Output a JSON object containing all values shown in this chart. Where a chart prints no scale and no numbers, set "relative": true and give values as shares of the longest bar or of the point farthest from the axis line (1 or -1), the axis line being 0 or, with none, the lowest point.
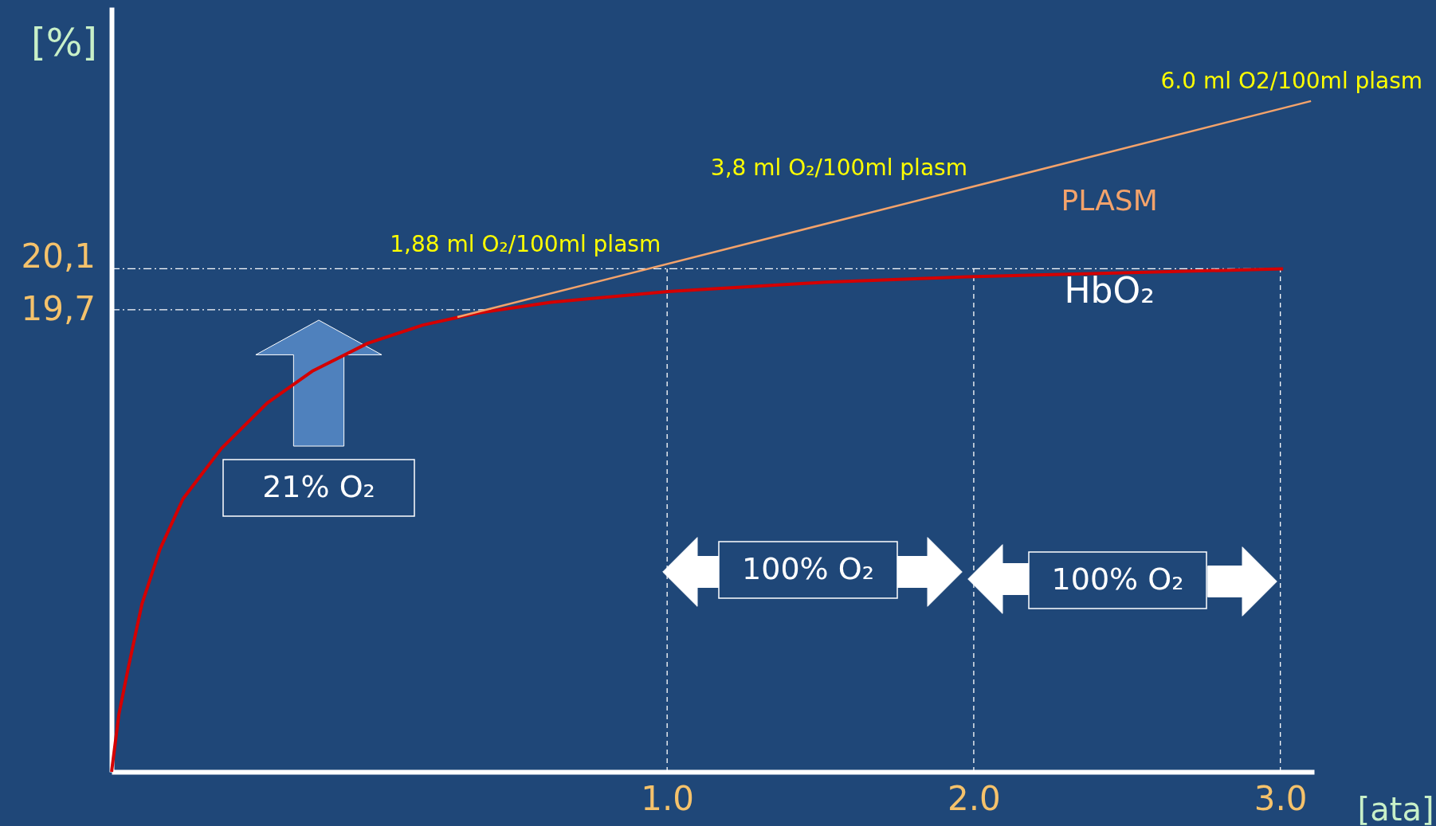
{
  "chart_data": {
    "type": "line",
    "relative": true,
    "xlabel": "[ata]",
    "ylabel": "[%]",
    "xlim": [
      -0.812,
      3.11
    ],
    "xticks": [
      {
        "value": 1,
        "label": "1.0"
      },
      {
        "value": 2,
        "label": "2.0"
      },
      {
        "value": 3,
        "label": "3.0"
      }
    ],
    "x": [
      -0.812,
      -0.788,
      -0.758,
      -0.713,
      -0.654,
      -0.579,
      -0.454,
      -0.304,
      -0.155,
      0.024,
      0.203,
      0.382,
      0.621,
      1.003,
      1.516,
      1.979,
      2.412,
      3.009
    ],
    "series": [
      {
        "name": "HbO₂",
        "color": "#d40000",
        "values": [
          0,
          0.086,
          0.154,
          0.25,
          0.332,
          0.407,
          0.482,
          0.55,
          0.598,
          0.639,
          0.666,
          0.684,
          0.7,
          0.716,
          0.73,
          0.738,
          0.743,
          0.75
        ]
      },
      {
        "name": "PLASM",
        "color": "#f4a36b",
        "x": [
          0.316,
          3.1
        ],
        "values": [
          0.678,
          1.0
        ]
      }
    ],
    "ref_lines": [
      {
        "axis": "y",
        "value": 0.75,
        "color": "#ffffff",
        "line_style": "dashdot"
      },
      {
        "axis": "y",
        "value": 0.689,
        "color": "#ffffff",
        "line_style": "dashdot"
      },
      {
        "axis": "x",
        "value": 1,
        "color": "#ffffff",
        "line_style": "dashed"
      },
      {
        "axis": "x",
        "value": 2,
        "color": "#ffffff",
        "line_style": "dashed"
      },
      {
        "axis": "x",
        "value": 3,
        "color": "#ffffff",
        "line_style": "dashed"
      }
    ],
    "annotations": [
      {
        "text": "1,88 ml O₂/100ml plasm",
        "x": 1.0,
        "y": 0.757
      },
      {
        "text": "3,8 ml O₂/100ml plasm",
        "x": 2.0,
        "y": 0.87
      },
      {
        "text": "6.0 ml O2/100ml plasm",
        "x": 3.1,
        "y": 1.0
      },
      "21% O₂",
      "100% O₂",
      "100% O₂",
      "20,1",
      "19,7"
    ],
    "legend": false,
    "grid": false,
    "marker": "none",
    "line_style": "solid"
  }
}
